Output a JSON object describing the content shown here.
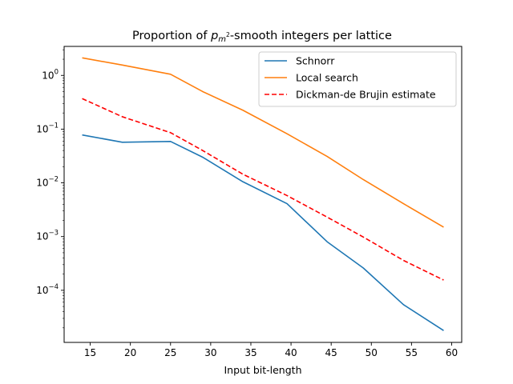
{
  "chart_data": {
    "type": "line",
    "title_pre": "Proportion of ",
    "title_math_base": "p",
    "title_math_sub": "m",
    "title_math_sup": "2",
    "title_post": "-smooth integers per lattice",
    "xlabel": "Input bit-length",
    "ylabel": "",
    "xlim": [
      11.75,
      61.25
    ],
    "ylim_log10": [
      -4.97,
      0.54
    ],
    "yscale": "log",
    "x_ticks": [
      {
        "value": 15,
        "label": "15"
      },
      {
        "value": 20,
        "label": "20"
      },
      {
        "value": 25,
        "label": "25"
      },
      {
        "value": 30,
        "label": "30"
      },
      {
        "value": 35,
        "label": "35"
      },
      {
        "value": 40,
        "label": "40"
      },
      {
        "value": 45,
        "label": "45"
      },
      {
        "value": 50,
        "label": "50"
      },
      {
        "value": 55,
        "label": "55"
      },
      {
        "value": 60,
        "label": "60"
      }
    ],
    "y_ticks": [
      {
        "exp": 0,
        "base": "10",
        "sup": "0"
      },
      {
        "exp": -1,
        "base": "10",
        "sup": "−1"
      },
      {
        "exp": -2,
        "base": "10",
        "sup": "−2"
      },
      {
        "exp": -3,
        "base": "10",
        "sup": "−3"
      },
      {
        "exp": -4,
        "base": "10",
        "sup": "−4"
      }
    ],
    "legend_position": "top-right",
    "x": [
      14,
      19,
      25,
      29,
      34,
      39.5,
      44.5,
      49,
      54,
      59
    ],
    "series": [
      {
        "name": "Schnorr",
        "color": "#1f77b4",
        "dash": "solid",
        "values": [
          0.078,
          0.057,
          0.059,
          0.03,
          0.0105,
          0.0041,
          0.0008,
          0.00026,
          5.4e-05,
          1.78e-05
        ]
      },
      {
        "name": "Local search",
        "color": "#ff7f0e",
        "dash": "solid",
        "values": [
          2.12,
          1.56,
          1.05,
          0.5,
          0.225,
          0.082,
          0.031,
          0.0115,
          0.0041,
          0.0015
        ]
      },
      {
        "name": "Dickman-de Brujin estimate",
        "color": "#ff0000",
        "dash": "dashed",
        "values": [
          0.37,
          0.17,
          0.086,
          0.04,
          0.0145,
          0.0058,
          0.0023,
          0.00098,
          0.00036,
          0.000155
        ]
      }
    ]
  }
}
